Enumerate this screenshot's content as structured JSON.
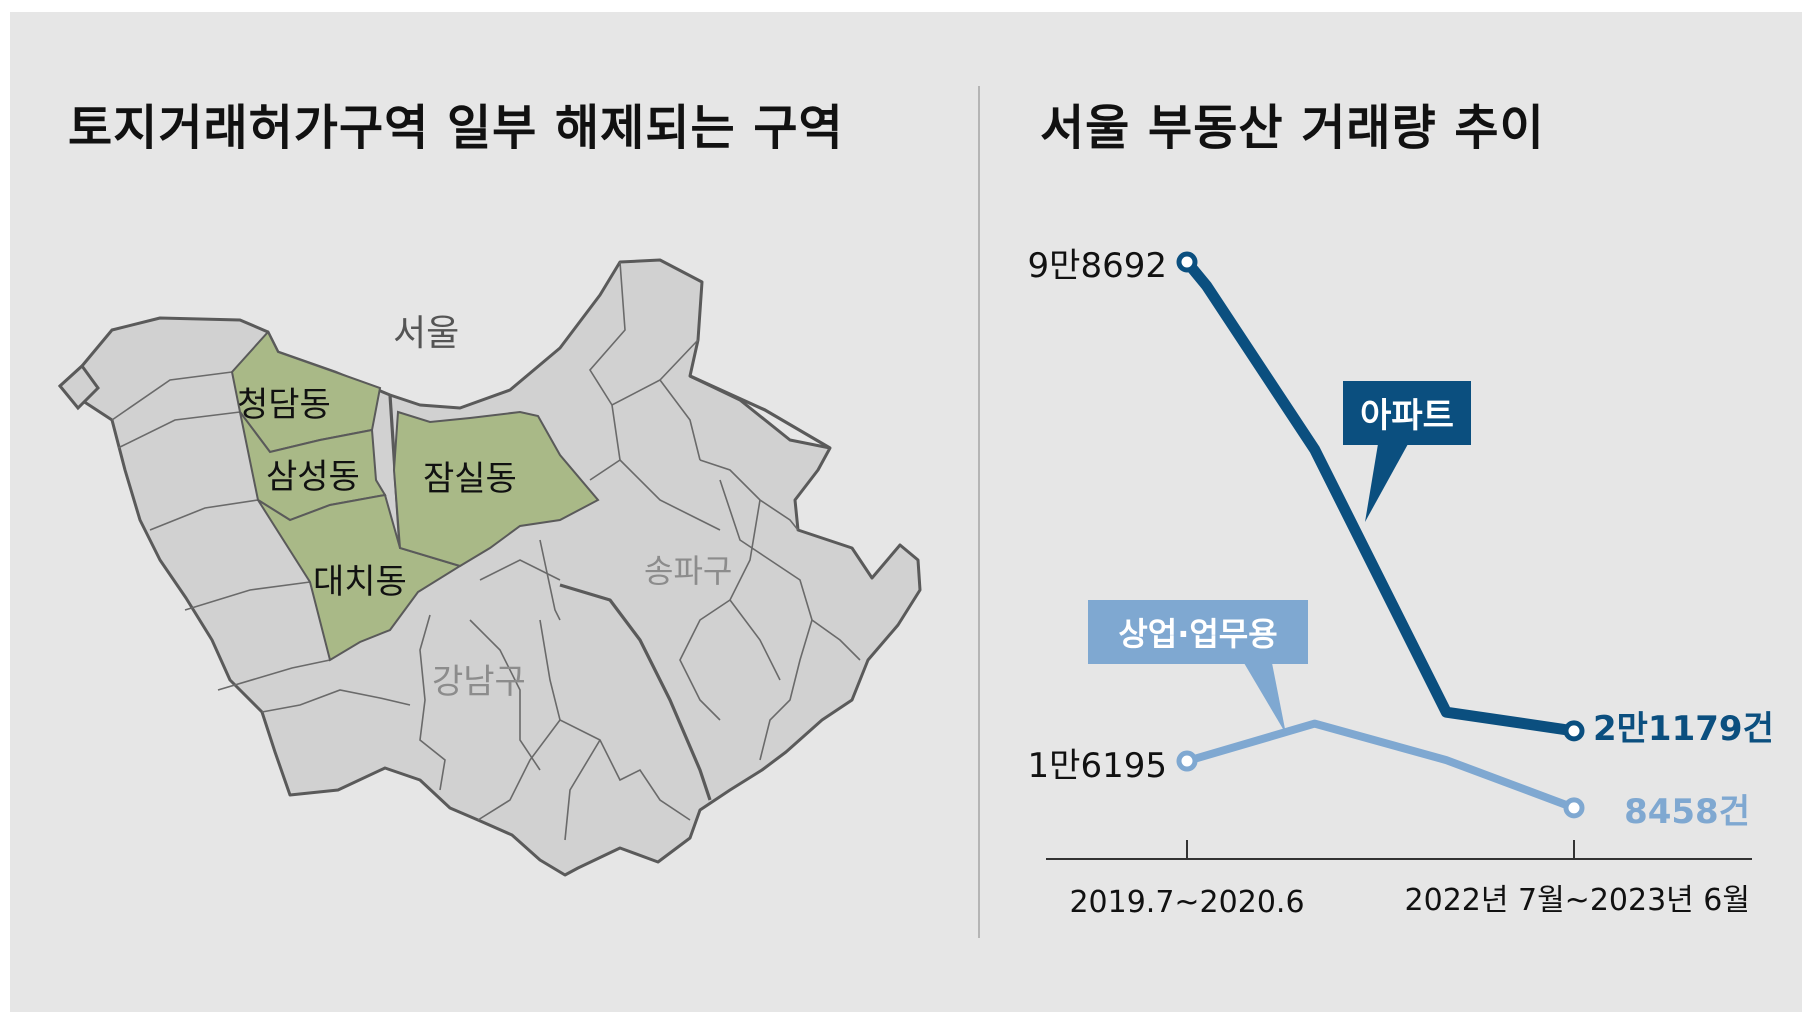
{
  "map": {
    "title": "토지거래허가구역 일부 해제되는 구역",
    "city_label": "서울",
    "district_labels": [
      "송파구",
      "강남구"
    ],
    "highlighted_areas": [
      "청담동",
      "삼성동",
      "대치동",
      "잠실동"
    ],
    "colors": {
      "highlight": "#a9b987",
      "land": "#d1d1d1",
      "border": "#5a5a5a",
      "district_text": "#8c8c8c"
    }
  },
  "chart": {
    "title": "서울 부동산 거래량 추이"
  },
  "chart_data": {
    "type": "line",
    "x": [
      "2019.7~2020.6",
      "2022년 7월~2023년 6월"
    ],
    "series": [
      {
        "name": "아파트",
        "values": [
          98692,
          21179
        ],
        "start_label": "9만8692",
        "end_label": "2만1179건",
        "color": "#0b4f7f"
      },
      {
        "name": "상업·업무용",
        "values": [
          16195,
          8458
        ],
        "start_label": "1만6195",
        "end_label": "8458건",
        "color": "#7fa8d1"
      }
    ]
  }
}
